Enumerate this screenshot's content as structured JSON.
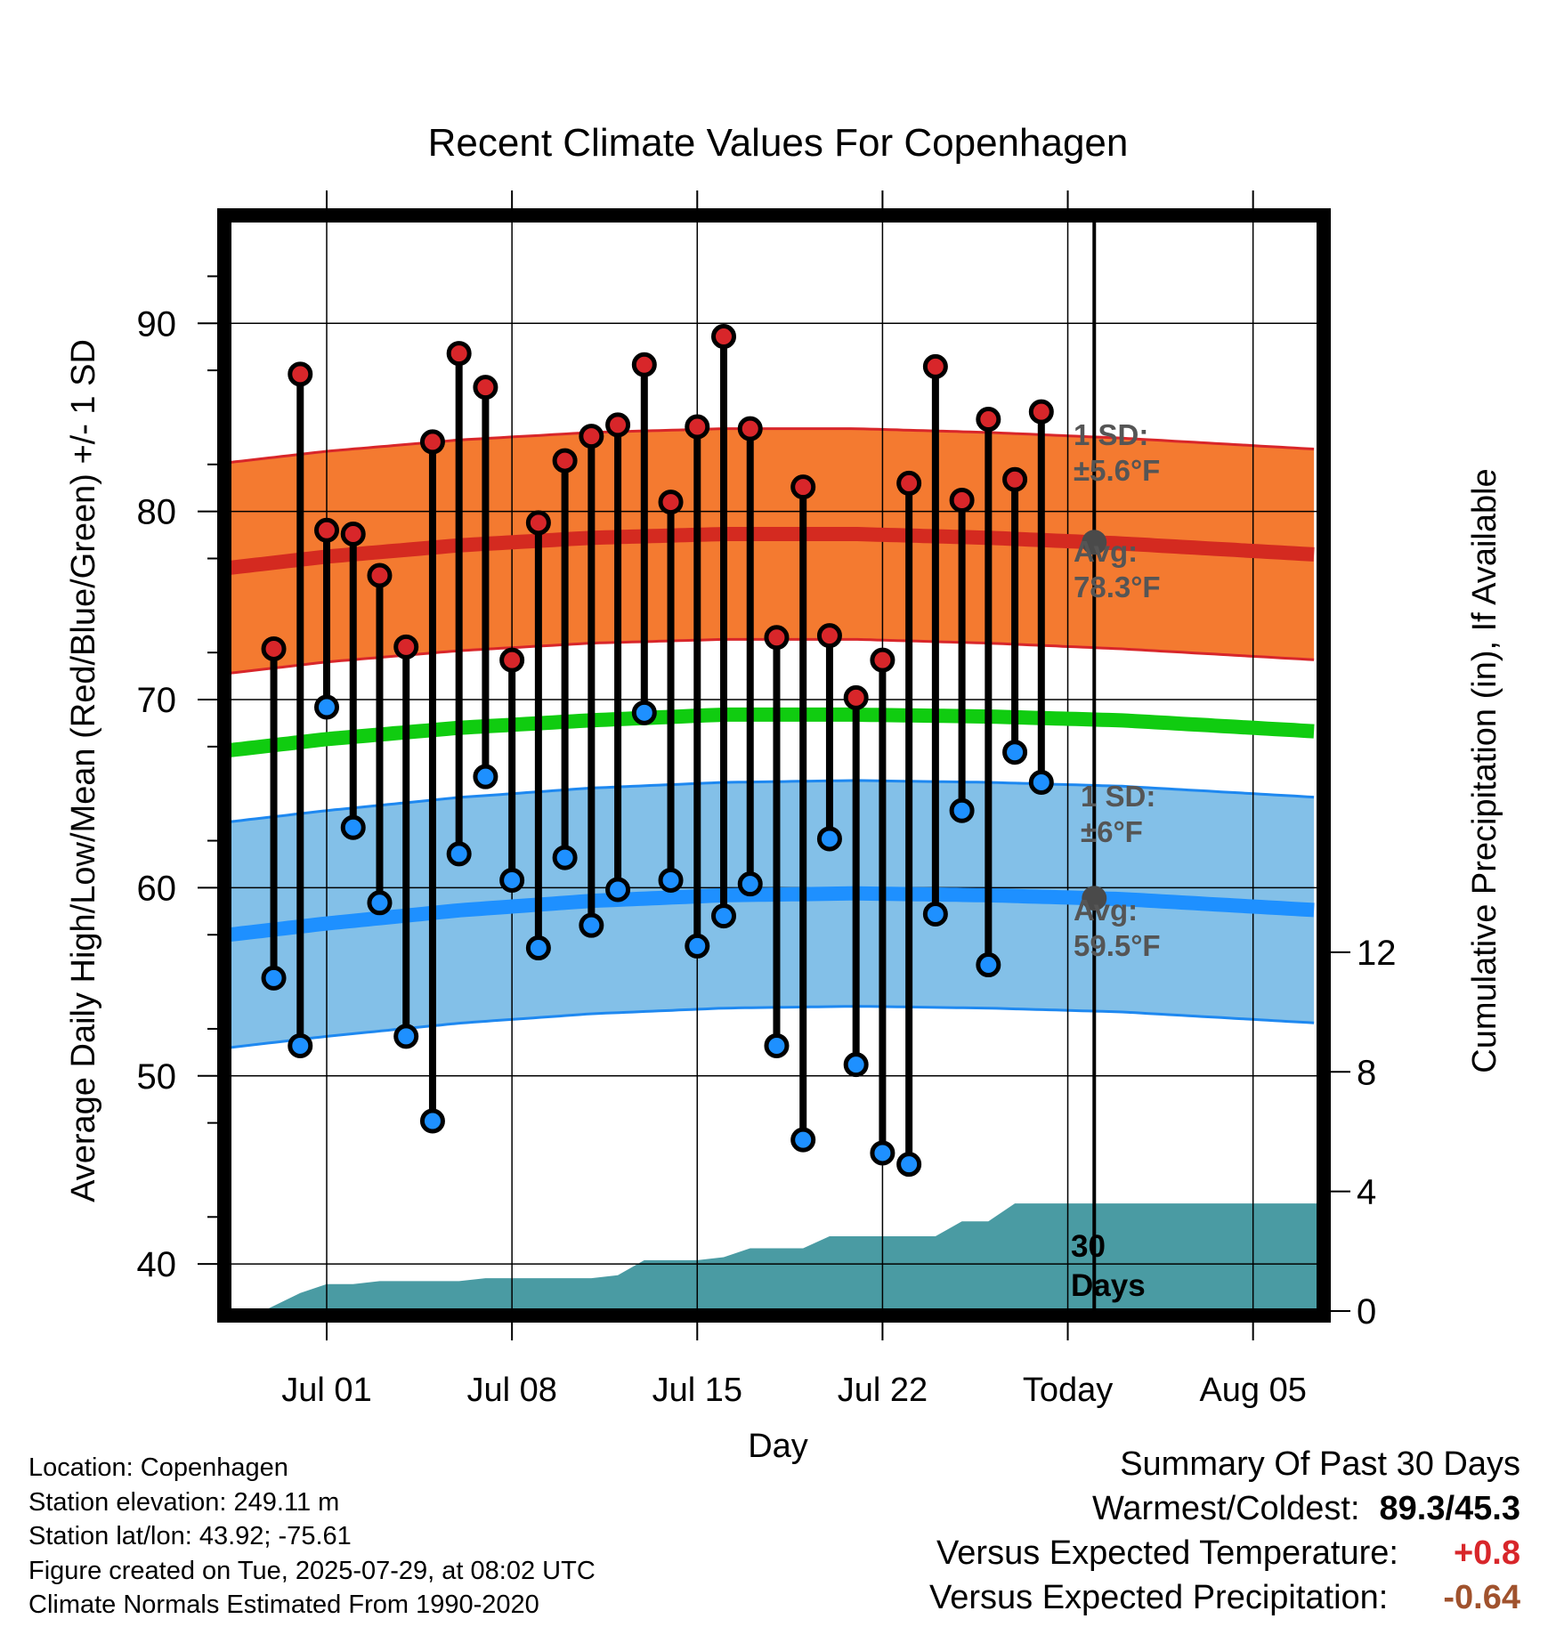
{
  "chart_data": {
    "type": "line",
    "title": "Recent Climate Values For Copenhagen",
    "xlabel": "Day",
    "ylabel": "Average Daily High/Low/Mean (Red/Blue/Green) +/- 1 SD",
    "y2label": "Cumulative Precipitation (in), If Available",
    "ylim": [
      37.5,
      95.5
    ],
    "y2lim": [
      0,
      36.5
    ],
    "x_ticks": [
      "Jul 01",
      "Jul 08",
      "Jul 15",
      "Jul 22",
      "Today",
      "Aug 05"
    ],
    "y_ticks": [
      40,
      50,
      60,
      70,
      80,
      90
    ],
    "y2_ticks": [
      0,
      4,
      8,
      12
    ],
    "grid": true,
    "today_day": 29,
    "x_range": [
      -3.7,
      37.5
    ],
    "daily": {
      "days": [
        -2,
        -1,
        0,
        1,
        2,
        3,
        4,
        5,
        6,
        7,
        8,
        9,
        10,
        11,
        12,
        13,
        14,
        15,
        16,
        17,
        18,
        19,
        20,
        21,
        22,
        23,
        24,
        25,
        26,
        27
      ],
      "high": [
        72.7,
        87.3,
        79.0,
        78.8,
        76.6,
        72.8,
        83.7,
        88.4,
        86.6,
        72.1,
        79.4,
        82.7,
        84.0,
        84.6,
        87.8,
        80.5,
        84.5,
        89.3,
        84.4,
        73.3,
        81.3,
        73.4,
        70.1,
        72.1,
        81.5,
        87.7,
        80.6,
        84.9,
        81.7,
        85.3
      ],
      "low": [
        55.2,
        51.6,
        69.6,
        63.2,
        59.2,
        52.1,
        47.6,
        61.8,
        65.9,
        60.4,
        56.8,
        61.6,
        58.0,
        59.9,
        69.3,
        60.4,
        56.9,
        58.5,
        60.2,
        51.6,
        46.6,
        62.6,
        50.6,
        45.9,
        45.3,
        58.6,
        64.1,
        55.9,
        67.2,
        65.6
      ]
    },
    "normals": {
      "days": [
        -3.7,
        0,
        5,
        10,
        15,
        20,
        25,
        30,
        37.5
      ],
      "high_avg": [
        77.0,
        77.6,
        78.2,
        78.6,
        78.8,
        78.8,
        78.6,
        78.3,
        77.7
      ],
      "high_sd": 5.6,
      "mean_avg": [
        67.3,
        67.9,
        68.5,
        68.9,
        69.2,
        69.2,
        69.1,
        68.9,
        68.3
      ],
      "low_avg": [
        57.5,
        58.1,
        58.8,
        59.3,
        59.6,
        59.7,
        59.6,
        59.4,
        58.8
      ],
      "low_sd": 6
    },
    "precipitation": {
      "days": [
        -2.4,
        -1,
        0,
        1,
        2,
        5,
        6,
        7,
        10,
        11,
        12,
        13,
        14,
        15,
        16,
        17,
        18,
        19,
        20,
        21,
        22,
        23,
        24,
        25,
        26,
        27,
        37.5
      ],
      "values": [
        0,
        0.6,
        0.9,
        0.9,
        1.0,
        1.0,
        1.1,
        1.1,
        1.1,
        1.2,
        1.7,
        1.7,
        1.7,
        1.8,
        2.1,
        2.1,
        2.1,
        2.5,
        2.5,
        2.5,
        2.5,
        2.5,
        3.0,
        3.0,
        3.6,
        3.6,
        3.6
      ]
    },
    "annotations": {
      "high_sd": [
        "1 SD:",
        "±5.6°F"
      ],
      "high_avg": [
        "Avg:",
        "78.3°F"
      ],
      "low_sd": [
        "1 SD:",
        "±6°F"
      ],
      "low_avg": [
        "Avg:",
        "59.5°F"
      ],
      "days": [
        "30",
        "Days"
      ]
    },
    "colors": {
      "high_band": "#f47a30",
      "high_line": "#d42a20",
      "high_edge": "#d8262a",
      "low_band": "#83c0e8",
      "low_line": "#1e90ff",
      "low_edge": "#1e88f0",
      "mean_line": "#10cc10",
      "precip": "#4a9ba3",
      "high_dot": "#d8262a",
      "low_dot": "#1e90ff",
      "marker": "#4a4a4a"
    }
  },
  "footer": {
    "location": "Location: Copenhagen",
    "elevation": "Station elevation: 249.11 m",
    "latlon": "Station lat/lon: 43.92; -75.61",
    "created": "Figure created on Tue, 2025-07-29, at 08:02 UTC",
    "normals": "Climate Normals Estimated From 1990-2020"
  },
  "summary": {
    "title": "Summary Of Past 30 Days",
    "warm_cold_label": "Warmest/Coldest:",
    "warm_cold_value": "89.3/45.3",
    "temp_label": "Versus Expected Temperature:",
    "temp_value": "+0.8",
    "temp_color": "#d8262a",
    "precip_label": "Versus Expected Precipitation:",
    "precip_value": "-0.64",
    "precip_color": "#a0522d"
  }
}
